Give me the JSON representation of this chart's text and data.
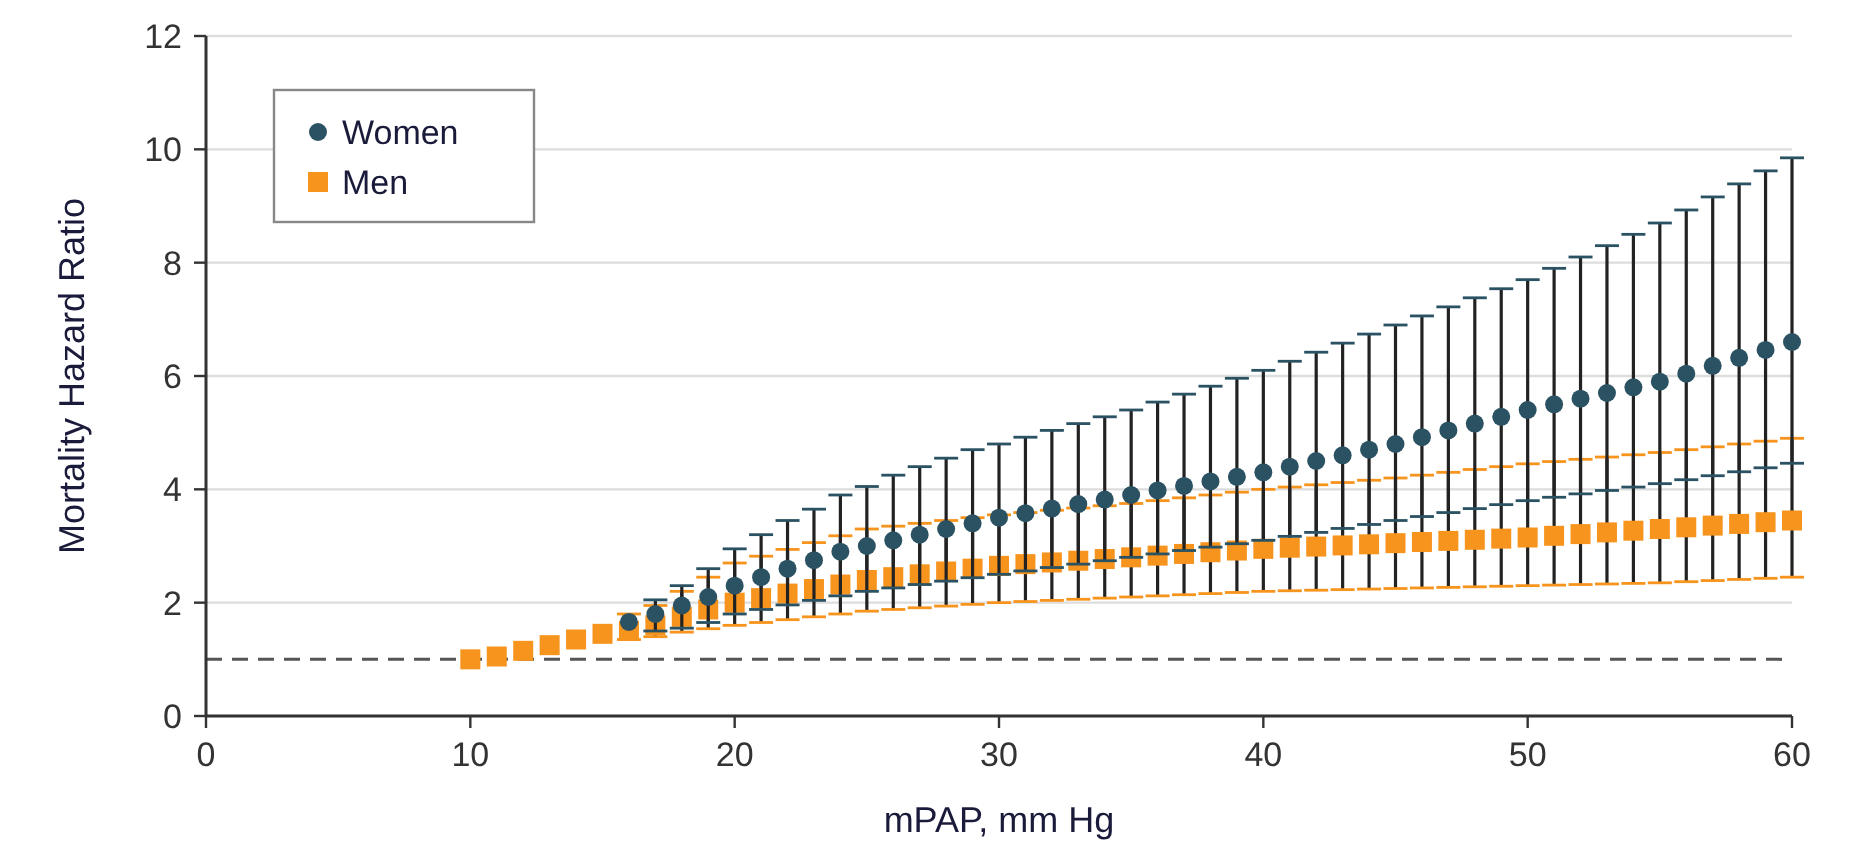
{
  "chart_data": {
    "type": "scatter",
    "xlabel": "mPAP, mm Hg",
    "ylabel": "Mortality Hazard Ratio",
    "x": [
      10,
      11,
      12,
      13,
      14,
      15,
      16,
      17,
      18,
      19,
      20,
      21,
      22,
      23,
      24,
      25,
      26,
      27,
      28,
      29,
      30,
      31,
      32,
      33,
      34,
      35,
      36,
      37,
      38,
      39,
      40,
      41,
      42,
      43,
      44,
      45,
      46,
      47,
      48,
      49,
      50,
      51,
      52,
      53,
      54,
      55,
      56,
      57,
      58,
      59,
      60
    ],
    "xlim": [
      0,
      60
    ],
    "xticks": [
      0,
      10,
      20,
      30,
      40,
      50,
      60
    ],
    "ylim": [
      0,
      12
    ],
    "yticks": [
      0,
      2,
      4,
      6,
      8,
      10,
      12
    ],
    "grid": "y",
    "legend": "top left",
    "ref_lines": [
      {
        "axis": "y",
        "value": 1,
        "line_style": "dashed",
        "color": "#555555"
      }
    ],
    "series": [
      {
        "name": "Women",
        "color": "#2b5262",
        "marker": "circle",
        "values": [
          null,
          null,
          null,
          null,
          null,
          null,
          1.66,
          1.8,
          1.95,
          2.1,
          2.3,
          2.45,
          2.6,
          2.75,
          2.9,
          3.0,
          3.1,
          3.2,
          3.3,
          3.4,
          3.5,
          3.58,
          3.66,
          3.74,
          3.82,
          3.9,
          3.98,
          4.06,
          4.14,
          4.22,
          4.3,
          4.4,
          4.5,
          4.6,
          4.7,
          4.8,
          4.92,
          5.04,
          5.16,
          5.28,
          5.4,
          5.5,
          5.6,
          5.7,
          5.8,
          5.9,
          6.04,
          6.18,
          6.32,
          6.46,
          6.6
        ],
        "errors": [
          null,
          null,
          null,
          null,
          null,
          null,
          null,
          [
            1.5,
            2.05
          ],
          [
            1.55,
            2.3
          ],
          [
            1.65,
            2.6
          ],
          [
            1.8,
            2.95
          ],
          [
            1.88,
            3.2
          ],
          [
            1.96,
            3.45
          ],
          [
            2.04,
            3.65
          ],
          [
            2.12,
            3.9
          ],
          [
            2.2,
            4.05
          ],
          [
            2.26,
            4.25
          ],
          [
            2.32,
            4.4
          ],
          [
            2.38,
            4.55
          ],
          [
            2.44,
            4.7
          ],
          [
            2.5,
            4.8
          ],
          [
            2.56,
            4.92
          ],
          [
            2.62,
            5.04
          ],
          [
            2.68,
            5.16
          ],
          [
            2.74,
            5.28
          ],
          [
            2.8,
            5.4
          ],
          [
            2.86,
            5.54
          ],
          [
            2.92,
            5.68
          ],
          [
            2.98,
            5.82
          ],
          [
            3.04,
            5.96
          ],
          [
            3.1,
            6.1
          ],
          [
            3.17,
            6.26
          ],
          [
            3.24,
            6.42
          ],
          [
            3.31,
            6.58
          ],
          [
            3.38,
            6.74
          ],
          [
            3.45,
            6.9
          ],
          [
            3.52,
            7.06
          ],
          [
            3.59,
            7.22
          ],
          [
            3.66,
            7.38
          ],
          [
            3.73,
            7.54
          ],
          [
            3.8,
            7.7
          ],
          [
            3.86,
            7.9
          ],
          [
            3.92,
            8.1
          ],
          [
            3.98,
            8.3
          ],
          [
            4.04,
            8.5
          ],
          [
            4.1,
            8.7
          ],
          [
            4.17,
            8.93
          ],
          [
            4.24,
            9.16
          ],
          [
            4.31,
            9.39
          ],
          [
            4.38,
            9.62
          ],
          [
            4.46,
            9.85
          ]
        ]
      },
      {
        "name": "Men",
        "color": "#f7941d",
        "marker": "square",
        "values": [
          1.0,
          1.05,
          1.15,
          1.25,
          1.35,
          1.45,
          1.5,
          1.6,
          1.75,
          1.88,
          2.0,
          2.08,
          2.16,
          2.24,
          2.32,
          2.4,
          2.45,
          2.5,
          2.55,
          2.6,
          2.65,
          2.68,
          2.71,
          2.74,
          2.77,
          2.8,
          2.83,
          2.86,
          2.89,
          2.92,
          2.95,
          2.97,
          2.99,
          3.01,
          3.03,
          3.05,
          3.07,
          3.09,
          3.11,
          3.13,
          3.15,
          3.18,
          3.21,
          3.24,
          3.27,
          3.3,
          3.33,
          3.36,
          3.39,
          3.42,
          3.45
        ],
        "errors": [
          null,
          null,
          null,
          null,
          null,
          null,
          [
            1.35,
            1.8
          ],
          [
            1.4,
            1.95
          ],
          [
            1.48,
            2.2
          ],
          [
            1.54,
            2.45
          ],
          [
            1.6,
            2.7
          ],
          [
            1.65,
            2.82
          ],
          [
            1.7,
            2.94
          ],
          [
            1.75,
            3.06
          ],
          [
            1.8,
            3.18
          ],
          [
            1.85,
            3.3
          ],
          [
            1.88,
            3.35
          ],
          [
            1.91,
            3.4
          ],
          [
            1.94,
            3.45
          ],
          [
            1.97,
            3.5
          ],
          [
            2.0,
            3.55
          ],
          [
            2.02,
            3.59
          ],
          [
            2.04,
            3.63
          ],
          [
            2.06,
            3.67
          ],
          [
            2.08,
            3.71
          ],
          [
            2.1,
            3.75
          ],
          [
            2.12,
            3.8
          ],
          [
            2.14,
            3.85
          ],
          [
            2.16,
            3.9
          ],
          [
            2.18,
            3.95
          ],
          [
            2.2,
            4.0
          ],
          [
            2.21,
            4.04
          ],
          [
            2.22,
            4.08
          ],
          [
            2.23,
            4.12
          ],
          [
            2.24,
            4.16
          ],
          [
            2.25,
            4.2
          ],
          [
            2.26,
            4.25
          ],
          [
            2.27,
            4.3
          ],
          [
            2.28,
            4.35
          ],
          [
            2.29,
            4.4
          ],
          [
            2.3,
            4.45
          ],
          [
            2.31,
            4.49
          ],
          [
            2.32,
            4.53
          ],
          [
            2.33,
            4.57
          ],
          [
            2.34,
            4.61
          ],
          [
            2.35,
            4.65
          ],
          [
            2.37,
            4.7
          ],
          [
            2.39,
            4.75
          ],
          [
            2.41,
            4.8
          ],
          [
            2.43,
            4.85
          ],
          [
            2.45,
            4.9
          ]
        ]
      }
    ]
  }
}
